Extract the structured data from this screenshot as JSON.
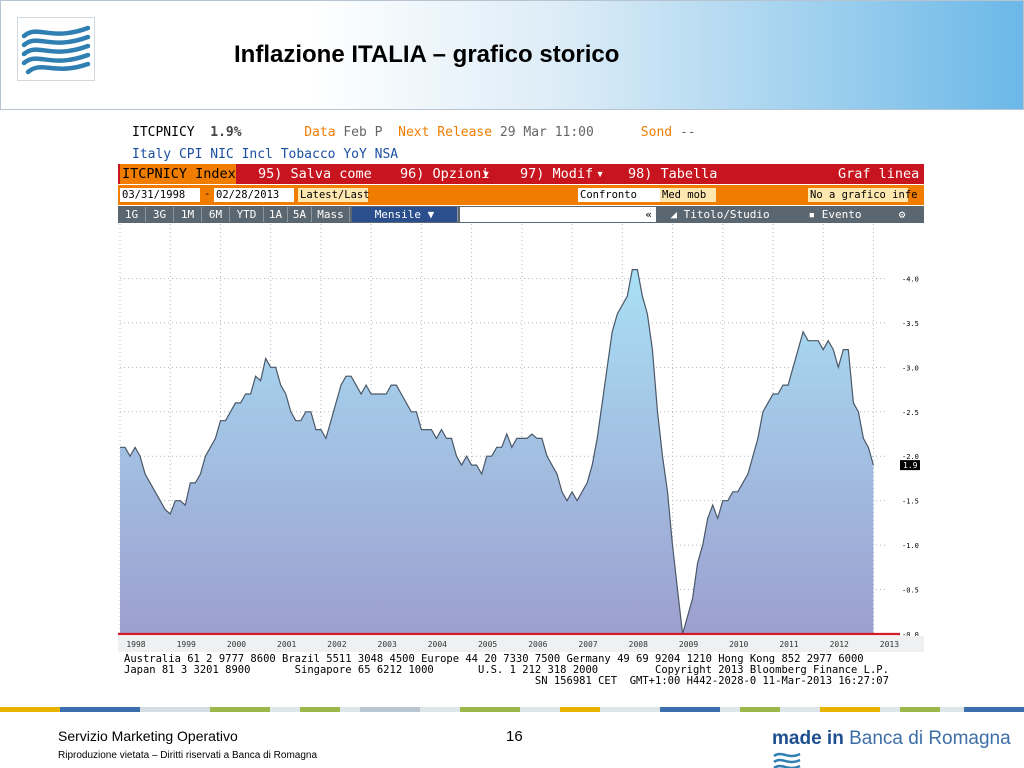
{
  "slide": {
    "title": "Inflazione ITALIA – grafico storico",
    "footer_left": "Servizio Marketing Operativo",
    "footer_sub": "Riproduzione vietata – Diritti riservati a Banca di Romagna",
    "page_number": "16",
    "brand_made_in": "made in",
    "brand_name": "Banca di Romagna"
  },
  "terminal": {
    "ticker": "ITCPNICY",
    "last_value": "1.9%",
    "data_label": "Data",
    "data_value": "Feb P",
    "next_release_label": "Next Release",
    "next_release_value": "29 Mar 11:00",
    "sond_label": "Sond",
    "sond_value": "--",
    "description": "Italy CPI NIC Incl Tobacco YoY NSA",
    "menu": {
      "index": "ITCPNICY Index",
      "save": "95) Salva come",
      "options": "96) Opzioni",
      "modif": "97) Modif",
      "table": "98) Tabella",
      "graf": "Graf linea"
    },
    "range": {
      "start": "03/31/1998",
      "sep": "-",
      "end": "02/28/2013",
      "latest": "Latest/Last",
      "compare": "Confronto",
      "med": "Med mob",
      "no_graph": "No a grafico infe"
    },
    "periods": [
      "1G",
      "3G",
      "1M",
      "6M",
      "YTD",
      "1A",
      "5A",
      "Mass"
    ],
    "frequency": "Mensile ▼",
    "back": "«",
    "study": "Titolo/Studio",
    "event": "Evento",
    "gear": "⚙",
    "footer_lines": [
      "Australia 61 2 9777 8600 Brazil 5511 3048 4500 Europe 44 20 7330 7500 Germany 49 69 9204 1210 Hong Kong 852 2977 6000",
      "Japan 81 3 3201 8900       Singapore 65 6212 1000       U.S. 1 212 318 2000         Copyright 2013 Bloomberg Finance L.P.",
      "                                                                 SN 156981 CET  GMT+1:00 H442-2028-0 11-Mar-2013 16:27:07"
    ]
  },
  "colors": {
    "red_bar": "#c8141e",
    "orange_bar": "#f07d00",
    "area_top": "#a9e0f5",
    "area_bottom": "#9c9fcf",
    "zero_line": "#d21a28"
  },
  "chart_data": {
    "type": "area",
    "title": "",
    "xlabel": "",
    "ylabel": "",
    "xlim": [
      1998.0,
      2013.25
    ],
    "ylim": [
      0,
      4.5
    ],
    "y_ticks": [
      "0.0",
      "0.5",
      "1.0",
      "1.5",
      "2.0",
      "2.5",
      "3.0",
      "3.5",
      "4.0"
    ],
    "x_ticks": [
      "1998",
      "1999",
      "2000",
      "2001",
      "2002",
      "2003",
      "2004",
      "2005",
      "2006",
      "2007",
      "2008",
      "2009",
      "2010",
      "2011",
      "2012",
      "2013"
    ],
    "last_label": "1.9",
    "reference_line": 0.0,
    "grid": true,
    "series": [
      {
        "points": [
          [
            1998.0,
            2.1
          ],
          [
            1998.1,
            2.1
          ],
          [
            1998.2,
            2.0
          ],
          [
            1998.3,
            2.1
          ],
          [
            1998.4,
            2.0
          ],
          [
            1998.5,
            1.8
          ],
          [
            1998.6,
            1.7
          ],
          [
            1998.7,
            1.6
          ],
          [
            1998.8,
            1.5
          ],
          [
            1998.9,
            1.4
          ],
          [
            1999.0,
            1.35
          ],
          [
            1999.1,
            1.5
          ],
          [
            1999.2,
            1.5
          ],
          [
            1999.3,
            1.45
          ],
          [
            1999.4,
            1.7
          ],
          [
            1999.5,
            1.7
          ],
          [
            1999.6,
            1.8
          ],
          [
            1999.7,
            2.0
          ],
          [
            1999.8,
            2.1
          ],
          [
            1999.9,
            2.2
          ],
          [
            2000.0,
            2.4
          ],
          [
            2000.1,
            2.4
          ],
          [
            2000.2,
            2.5
          ],
          [
            2000.3,
            2.6
          ],
          [
            2000.4,
            2.6
          ],
          [
            2000.5,
            2.7
          ],
          [
            2000.6,
            2.7
          ],
          [
            2000.7,
            2.9
          ],
          [
            2000.8,
            2.85
          ],
          [
            2000.9,
            3.1
          ],
          [
            2001.0,
            3.0
          ],
          [
            2001.1,
            3.0
          ],
          [
            2001.2,
            2.8
          ],
          [
            2001.3,
            2.7
          ],
          [
            2001.4,
            2.5
          ],
          [
            2001.5,
            2.4
          ],
          [
            2001.6,
            2.4
          ],
          [
            2001.7,
            2.5
          ],
          [
            2001.8,
            2.5
          ],
          [
            2001.9,
            2.3
          ],
          [
            2002.0,
            2.3
          ],
          [
            2002.1,
            2.2
          ],
          [
            2002.2,
            2.4
          ],
          [
            2002.3,
            2.6
          ],
          [
            2002.4,
            2.8
          ],
          [
            2002.5,
            2.9
          ],
          [
            2002.6,
            2.9
          ],
          [
            2002.7,
            2.8
          ],
          [
            2002.8,
            2.7
          ],
          [
            2002.9,
            2.8
          ],
          [
            2003.0,
            2.7
          ],
          [
            2003.1,
            2.7
          ],
          [
            2003.2,
            2.7
          ],
          [
            2003.3,
            2.7
          ],
          [
            2003.4,
            2.8
          ],
          [
            2003.5,
            2.8
          ],
          [
            2003.6,
            2.7
          ],
          [
            2003.7,
            2.6
          ],
          [
            2003.8,
            2.5
          ],
          [
            2003.9,
            2.5
          ],
          [
            2004.0,
            2.3
          ],
          [
            2004.1,
            2.3
          ],
          [
            2004.2,
            2.3
          ],
          [
            2004.3,
            2.2
          ],
          [
            2004.4,
            2.3
          ],
          [
            2004.5,
            2.2
          ],
          [
            2004.6,
            2.2
          ],
          [
            2004.7,
            2.0
          ],
          [
            2004.8,
            1.9
          ],
          [
            2004.9,
            2.0
          ],
          [
            2005.0,
            1.9
          ],
          [
            2005.1,
            1.9
          ],
          [
            2005.2,
            1.8
          ],
          [
            2005.3,
            2.0
          ],
          [
            2005.4,
            2.0
          ],
          [
            2005.5,
            2.1
          ],
          [
            2005.6,
            2.1
          ],
          [
            2005.7,
            2.25
          ],
          [
            2005.8,
            2.1
          ],
          [
            2005.9,
            2.2
          ],
          [
            2006.0,
            2.2
          ],
          [
            2006.1,
            2.2
          ],
          [
            2006.2,
            2.25
          ],
          [
            2006.3,
            2.2
          ],
          [
            2006.4,
            2.2
          ],
          [
            2006.5,
            2.0
          ],
          [
            2006.6,
            1.9
          ],
          [
            2006.7,
            1.8
          ],
          [
            2006.8,
            1.6
          ],
          [
            2006.9,
            1.5
          ],
          [
            2007.0,
            1.6
          ],
          [
            2007.1,
            1.5
          ],
          [
            2007.2,
            1.6
          ],
          [
            2007.3,
            1.7
          ],
          [
            2007.4,
            1.9
          ],
          [
            2007.5,
            2.2
          ],
          [
            2007.6,
            2.6
          ],
          [
            2007.7,
            3.0
          ],
          [
            2007.8,
            3.4
          ],
          [
            2007.9,
            3.6
          ],
          [
            2008.0,
            3.7
          ],
          [
            2008.1,
            3.8
          ],
          [
            2008.2,
            4.1
          ],
          [
            2008.3,
            4.1
          ],
          [
            2008.4,
            3.8
          ],
          [
            2008.5,
            3.6
          ],
          [
            2008.6,
            3.2
          ],
          [
            2008.7,
            2.5
          ],
          [
            2008.8,
            2.0
          ],
          [
            2008.9,
            1.6
          ],
          [
            2009.0,
            1.0
          ],
          [
            2009.1,
            0.5
          ],
          [
            2009.2,
            0.0
          ],
          [
            2009.3,
            0.2
          ],
          [
            2009.4,
            0.4
          ],
          [
            2009.5,
            0.8
          ],
          [
            2009.6,
            1.0
          ],
          [
            2009.7,
            1.3
          ],
          [
            2009.8,
            1.45
          ],
          [
            2009.9,
            1.3
          ],
          [
            2010.0,
            1.5
          ],
          [
            2010.1,
            1.5
          ],
          [
            2010.2,
            1.6
          ],
          [
            2010.3,
            1.6
          ],
          [
            2010.4,
            1.7
          ],
          [
            2010.5,
            1.8
          ],
          [
            2010.6,
            2.0
          ],
          [
            2010.7,
            2.2
          ],
          [
            2010.8,
            2.5
          ],
          [
            2010.9,
            2.6
          ],
          [
            2011.0,
            2.7
          ],
          [
            2011.1,
            2.7
          ],
          [
            2011.2,
            2.8
          ],
          [
            2011.3,
            2.8
          ],
          [
            2011.4,
            3.0
          ],
          [
            2011.5,
            3.2
          ],
          [
            2011.6,
            3.4
          ],
          [
            2011.7,
            3.3
          ],
          [
            2011.8,
            3.3
          ],
          [
            2011.9,
            3.3
          ],
          [
            2012.0,
            3.2
          ],
          [
            2012.1,
            3.3
          ],
          [
            2012.2,
            3.2
          ],
          [
            2012.3,
            3.0
          ],
          [
            2012.4,
            3.2
          ],
          [
            2012.5,
            3.2
          ],
          [
            2012.6,
            2.6
          ],
          [
            2012.7,
            2.5
          ],
          [
            2012.8,
            2.2
          ],
          [
            2012.9,
            2.1
          ],
          [
            2013.0,
            1.9
          ]
        ]
      }
    ]
  }
}
